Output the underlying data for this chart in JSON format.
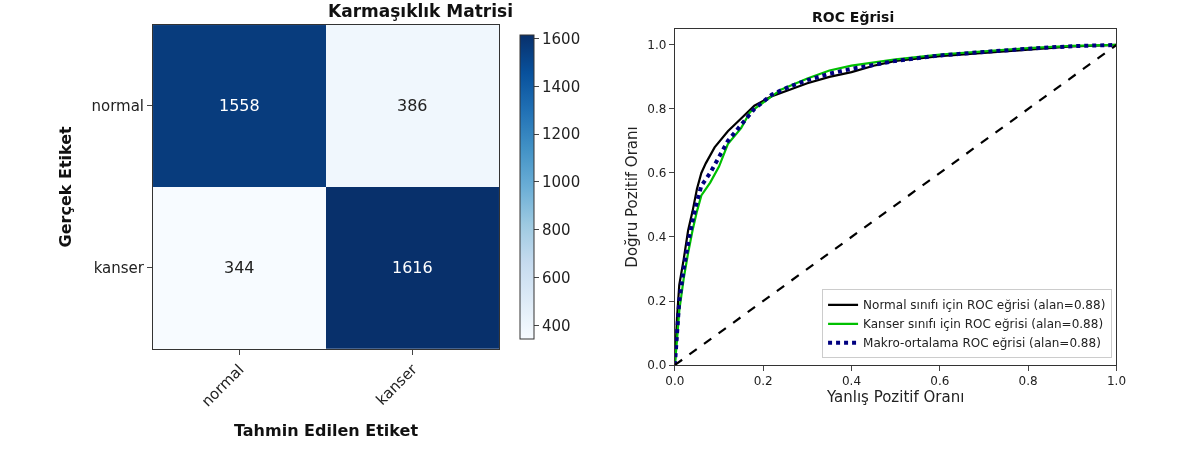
{
  "chart_data": [
    {
      "type": "heatmap",
      "title": "Karmaşıklık Matrisi",
      "xlabel": "Tahmin Edilen Etiket",
      "ylabel": "Gerçek Etiket",
      "categories": [
        "normal",
        "kanser"
      ],
      "y_categories": [
        "normal",
        "kanser"
      ],
      "cells": [
        [
          1558,
          386
        ],
        [
          344,
          1616
        ]
      ],
      "clim": [
        344,
        1616
      ],
      "cticks": [
        400,
        600,
        800,
        1000,
        1200,
        1400,
        1600
      ],
      "data_labels": true
    },
    {
      "type": "line",
      "title": "ROC Eğrisi",
      "xlabel": "Yanlış Pozitif Oranı",
      "ylabel": "Doğru Pozitif Oranı",
      "xlim": [
        0,
        1
      ],
      "ylim": [
        0,
        1.05
      ],
      "xticks": [
        {
          "value": 0,
          "label": "0.0"
        },
        0.2,
        0.4,
        0.6,
        0.8,
        {
          "value": 1,
          "label": "1.0"
        }
      ],
      "yticks": [
        {
          "value": 0,
          "label": "0.0"
        },
        0.2,
        0.4,
        0.6,
        0.8,
        {
          "value": 1,
          "label": "1.0"
        }
      ],
      "legend": "bottom right",
      "marker": "none",
      "series": [
        {
          "name": "Normal sınıfı için ROC eğrisi (alan=0.88)",
          "color": "#000000",
          "line_style": "solid",
          "x": [
            0,
            0.005,
            0.01,
            0.02,
            0.03,
            0.04,
            0.05,
            0.06,
            0.07,
            0.09,
            0.12,
            0.15,
            0.18,
            0.22,
            0.26,
            0.3,
            0.35,
            0.4,
            0.45,
            0.5,
            0.6,
            0.7,
            0.8,
            0.9,
            1
          ],
          "values": [
            0,
            0.15,
            0.25,
            0.33,
            0.42,
            0.48,
            0.55,
            0.6,
            0.63,
            0.68,
            0.73,
            0.77,
            0.81,
            0.84,
            0.86,
            0.88,
            0.9,
            0.915,
            0.935,
            0.95,
            0.965,
            0.975,
            0.985,
            0.995,
            1
          ]
        },
        {
          "name": "Kanser sınıfı için ROC eğrisi (alan=0.88)",
          "color": "#00c000",
          "line_style": "solid",
          "x": [
            0,
            0.005,
            0.01,
            0.02,
            0.03,
            0.04,
            0.05,
            0.06,
            0.08,
            0.1,
            0.12,
            0.15,
            0.17,
            0.2,
            0.24,
            0.3,
            0.35,
            0.4,
            0.5,
            0.6,
            0.7,
            0.8,
            0.9,
            1
          ],
          "values": [
            0,
            0.08,
            0.17,
            0.27,
            0.35,
            0.42,
            0.48,
            0.53,
            0.57,
            0.62,
            0.69,
            0.74,
            0.79,
            0.82,
            0.86,
            0.895,
            0.92,
            0.935,
            0.955,
            0.97,
            0.98,
            0.99,
            0.997,
            1
          ]
        },
        {
          "name": "Makro-ortalama ROC eğrisi (alan=0.88)",
          "color": "#000080",
          "line_style": "dotted",
          "x": [
            0,
            0.005,
            0.01,
            0.02,
            0.03,
            0.04,
            0.05,
            0.06,
            0.08,
            0.1,
            0.12,
            0.15,
            0.18,
            0.22,
            0.26,
            0.3,
            0.35,
            0.4,
            0.5,
            0.6,
            0.7,
            0.8,
            0.9,
            1
          ],
          "values": [
            0,
            0.1,
            0.2,
            0.3,
            0.38,
            0.45,
            0.51,
            0.56,
            0.6,
            0.65,
            0.7,
            0.75,
            0.8,
            0.845,
            0.87,
            0.89,
            0.91,
            0.925,
            0.95,
            0.967,
            0.978,
            0.988,
            0.996,
            1
          ]
        },
        {
          "color": "#000000",
          "line_style": "dashed",
          "x": [
            0,
            1
          ],
          "values": [
            0,
            1
          ]
        }
      ]
    }
  ]
}
